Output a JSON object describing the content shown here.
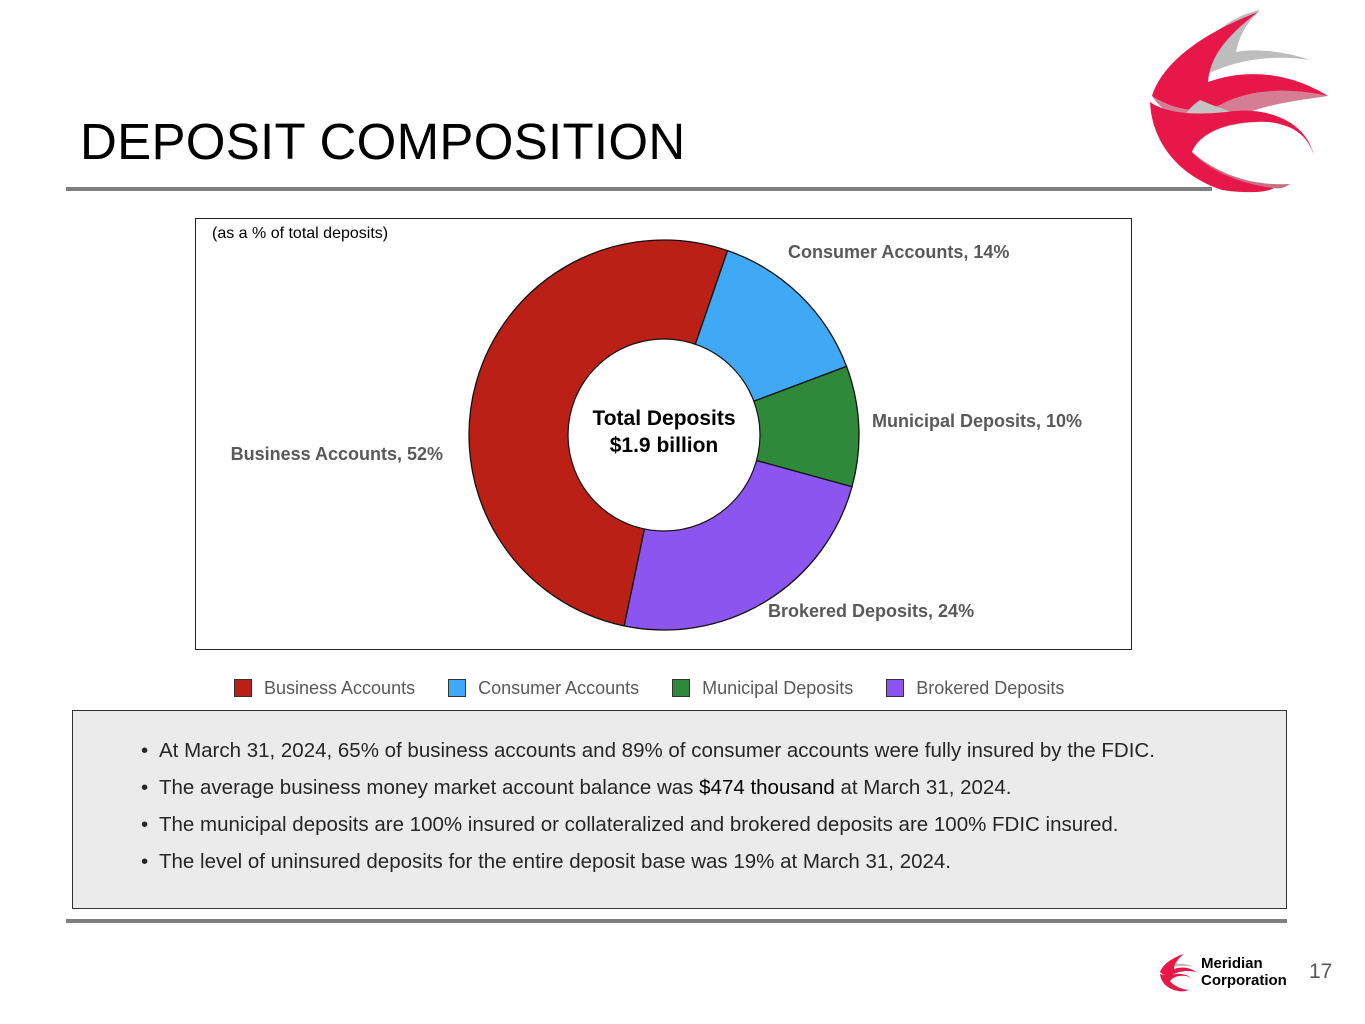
{
  "slide": {
    "title": "DEPOSIT COMPOSITION",
    "page_number": "17",
    "brand_line1": "Meridian",
    "brand_line2": "Corporation"
  },
  "chart_data": {
    "type": "pie",
    "subtitle": "(as a % of total deposits)",
    "center_label_line1": "Total Deposits",
    "center_label_line2": "$1.9 billion",
    "categories": [
      "Consumer Accounts",
      "Municipal Deposits",
      "Brokered Deposits",
      "Business Accounts"
    ],
    "values": [
      14,
      10,
      24,
      52
    ],
    "data_labels": [
      "Consumer Accounts, 14%",
      "Municipal Deposits, 10%",
      "Brokered Deposits, 24%",
      "Business Accounts, 52%"
    ],
    "colors": [
      "#3fa9f5",
      "#2e8a3a",
      "#8c55ef",
      "#bb2016"
    ],
    "unit": "%",
    "donut": true
  },
  "legend": {
    "items": [
      {
        "label": "Business Accounts",
        "color": "#bb2016"
      },
      {
        "label": "Consumer Accounts",
        "color": "#3fa9f5"
      },
      {
        "label": "Municipal Deposits",
        "color": "#2e8a3a"
      },
      {
        "label": "Brokered Deposits",
        "color": "#8c55ef"
      }
    ]
  },
  "notes": {
    "bullet_char": "•",
    "line1": "At March 31, 2024, 65% of business accounts and 89% of consumer accounts were fully insured by the FDIC.",
    "line2_before": "The average business money market account balance was ",
    "line2_highlight": "$474 thousand",
    "line2_after": " at March 31, 2024.",
    "line3": "The municipal deposits are 100% insured or collateralized and brokered deposits are 100% FDIC insured.",
    "line4": "The level of uninsured deposits for the entire deposit base was 19% at March 31, 2024."
  },
  "colors": {
    "logo_red": "#e8174a",
    "logo_gray": "#b5b5b5",
    "rule_gray": "#7f7f7f",
    "notes_bg": "#ebebeb"
  }
}
